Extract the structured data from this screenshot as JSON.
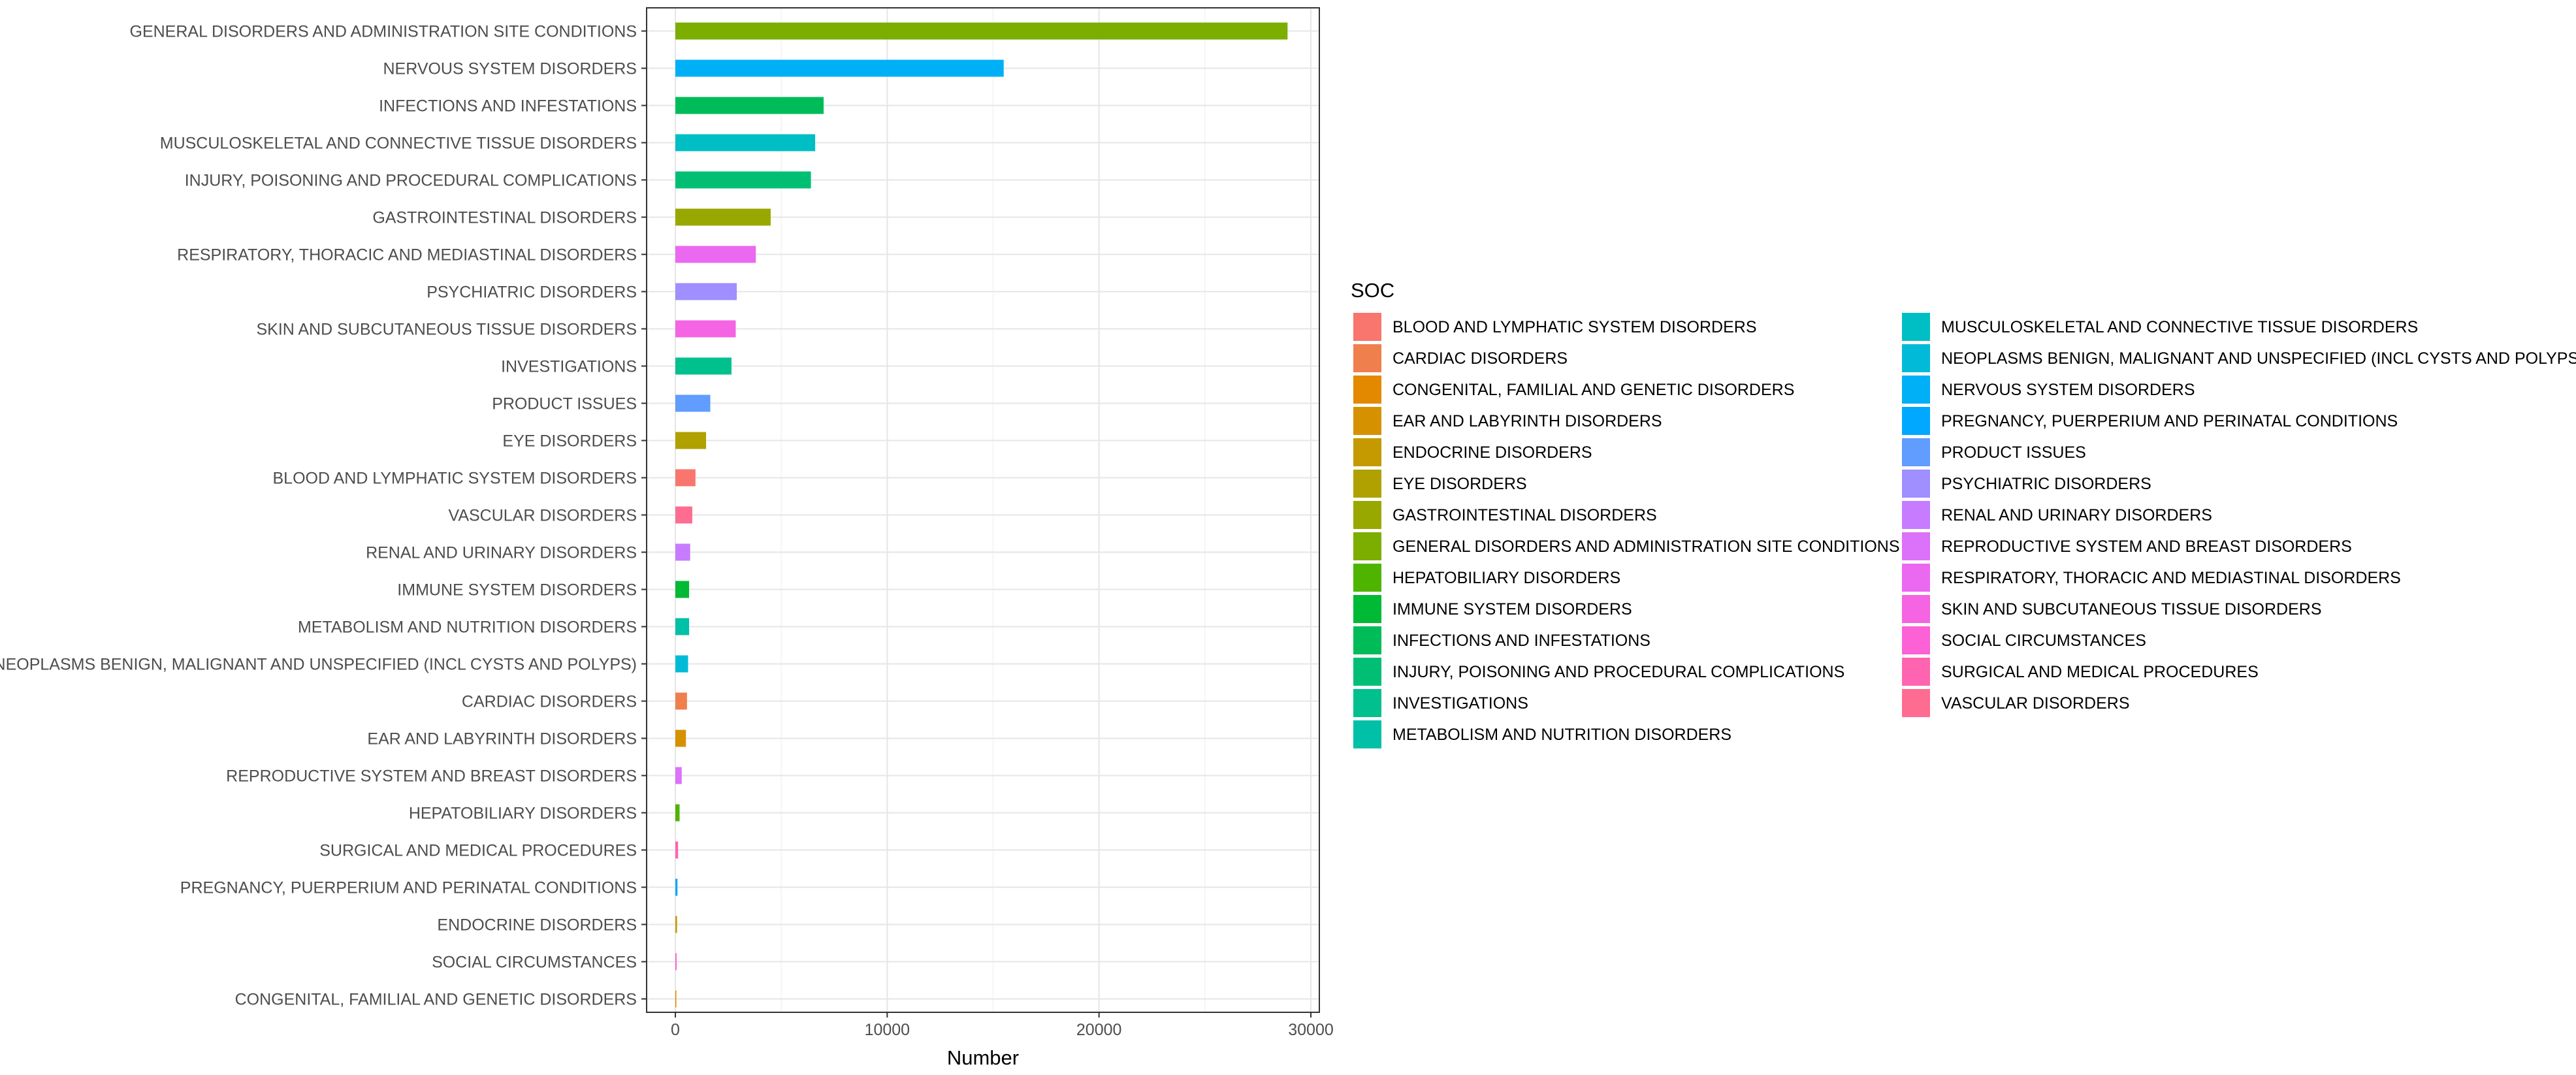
{
  "chart_data": {
    "type": "bar",
    "orientation": "horizontal",
    "xlabel": "Number",
    "ylabel": "",
    "xlim": [
      0,
      30000
    ],
    "xticks": [
      0,
      10000,
      20000,
      30000
    ],
    "grid": true,
    "legend_title": "SOC",
    "legend_position": "right",
    "categories": [
      "GENERAL DISORDERS AND ADMINISTRATION SITE CONDITIONS",
      "NERVOUS SYSTEM DISORDERS",
      "INFECTIONS AND INFESTATIONS",
      "MUSCULOSKELETAL AND CONNECTIVE TISSUE DISORDERS",
      "INJURY, POISONING AND PROCEDURAL COMPLICATIONS",
      "GASTROINTESTINAL DISORDERS",
      "RESPIRATORY, THORACIC AND MEDIASTINAL DISORDERS",
      "PSYCHIATRIC DISORDERS",
      "SKIN AND SUBCUTANEOUS TISSUE DISORDERS",
      "INVESTIGATIONS",
      "PRODUCT ISSUES",
      "EYE DISORDERS",
      "BLOOD AND LYMPHATIC SYSTEM DISORDERS",
      "VASCULAR DISORDERS",
      "RENAL AND URINARY DISORDERS",
      "IMMUNE SYSTEM DISORDERS",
      "METABOLISM AND NUTRITION DISORDERS",
      "NEOPLASMS BENIGN, MALIGNANT AND UNSPECIFIED (INCL CYSTS AND POLYPS)",
      "CARDIAC DISORDERS",
      "EAR AND LABYRINTH DISORDERS",
      "REPRODUCTIVE SYSTEM AND BREAST DISORDERS",
      "HEPATOBILIARY DISORDERS",
      "SURGICAL AND MEDICAL PROCEDURES",
      "PREGNANCY, PUERPERIUM AND PERINATAL CONDITIONS",
      "ENDOCRINE DISORDERS",
      "SOCIAL CIRCUMSTANCES",
      "CONGENITAL, FAMILIAL AND GENETIC DISORDERS"
    ],
    "values": [
      28900,
      15500,
      7000,
      6600,
      6400,
      4500,
      3800,
      2900,
      2850,
      2650,
      1650,
      1450,
      950,
      800,
      700,
      650,
      650,
      600,
      550,
      500,
      300,
      200,
      130,
      100,
      80,
      60,
      40
    ],
    "legend_entries": [
      {
        "label": "BLOOD AND LYMPHATIC SYSTEM DISORDERS",
        "color": "#F8766D"
      },
      {
        "label": "CARDIAC DISORDERS",
        "color": "#F07F4E"
      },
      {
        "label": "CONGENITAL, FAMILIAL AND GENETIC DISORDERS",
        "color": "#E38900"
      },
      {
        "label": "EAR AND LABYRINTH DISORDERS",
        "color": "#D69100"
      },
      {
        "label": "ENDOCRINE DISORDERS",
        "color": "#C49A00"
      },
      {
        "label": "EYE DISORDERS",
        "color": "#B0A100"
      },
      {
        "label": "GASTROINTESTINAL DISORDERS",
        "color": "#99A800"
      },
      {
        "label": "GENERAL DISORDERS AND ADMINISTRATION SITE CONDITIONS",
        "color": "#7CAE00"
      },
      {
        "label": "HEPATOBILIARY DISORDERS",
        "color": "#4FB400"
      },
      {
        "label": "IMMUNE SYSTEM DISORDERS",
        "color": "#00B935"
      },
      {
        "label": "INFECTIONS AND INFESTATIONS",
        "color": "#00BC58"
      },
      {
        "label": "INJURY, POISONING AND PROCEDURAL COMPLICATIONS",
        "color": "#00BF74"
      },
      {
        "label": "INVESTIGATIONS",
        "color": "#00C08E"
      },
      {
        "label": "METABOLISM AND NUTRITION DISORDERS",
        "color": "#00C0A7"
      },
      {
        "label": "MUSCULOSKELETAL AND CONNECTIVE TISSUE DISORDERS",
        "color": "#00BFC4"
      },
      {
        "label": "NEOPLASMS BENIGN, MALIGNANT AND UNSPECIFIED (INCL CYSTS AND POLYPS)",
        "color": "#00BAD8"
      },
      {
        "label": "NERVOUS SYSTEM DISORDERS",
        "color": "#00B0F6"
      },
      {
        "label": "PREGNANCY, PUERPERIUM AND PERINATAL CONDITIONS",
        "color": "#00A8FF"
      },
      {
        "label": "PRODUCT ISSUES",
        "color": "#619CFF"
      },
      {
        "label": "PSYCHIATRIC DISORDERS",
        "color": "#9F8FFF"
      },
      {
        "label": "RENAL AND URINARY DISORDERS",
        "color": "#C77CFF"
      },
      {
        "label": "REPRODUCTIVE SYSTEM AND BREAST DISORDERS",
        "color": "#DC71FA"
      },
      {
        "label": "RESPIRATORY, THORACIC AND MEDIASTINAL DISORDERS",
        "color": "#EB69F0"
      },
      {
        "label": "SKIN AND SUBCUTANEOUS TISSUE DISORDERS",
        "color": "#F564E3"
      },
      {
        "label": "SOCIAL CIRCUMSTANCES",
        "color": "#FC61D5"
      },
      {
        "label": "SURGICAL AND MEDICAL PROCEDURES",
        "color": "#FF64B0"
      },
      {
        "label": "VASCULAR DISORDERS",
        "color": "#FF6C91"
      }
    ]
  }
}
